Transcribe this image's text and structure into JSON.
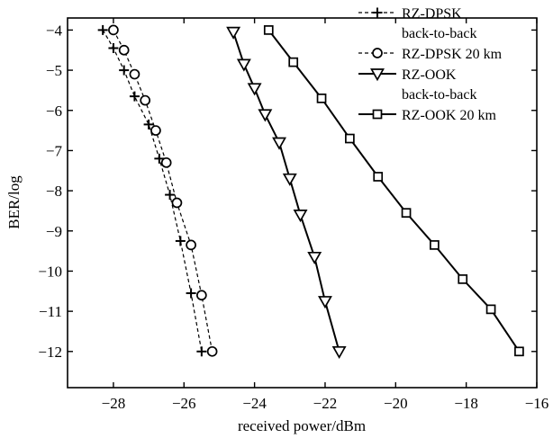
{
  "chart_data": {
    "type": "line",
    "title": "",
    "xlabel": "received power/dBm",
    "ylabel": "BER/log",
    "xlim": [
      -29.3,
      -16
    ],
    "ylim": [
      -12.9,
      -3.7
    ],
    "xticks": [
      -28,
      -26,
      -24,
      -22,
      -20,
      -18,
      -16
    ],
    "yticks": [
      -4,
      -5,
      -6,
      -7,
      -8,
      -9,
      -10,
      -11,
      -12
    ],
    "grid": false,
    "legend_position": "top-right",
    "series": [
      {
        "name_lines": [
          "RZ-DPSK",
          "back-to-back"
        ],
        "marker": "plus",
        "dash": true,
        "x": [
          -28.3,
          -28.0,
          -27.7,
          -27.4,
          -27.0,
          -26.7,
          -26.4,
          -26.1,
          -25.8,
          -25.5
        ],
        "y": [
          -4,
          -4.45,
          -5.0,
          -5.65,
          -6.35,
          -7.2,
          -8.1,
          -9.25,
          -10.55,
          -12
        ]
      },
      {
        "name_lines": [
          "RZ-DPSK 20 km"
        ],
        "marker": "circle",
        "dash": true,
        "x": [
          -28.0,
          -27.7,
          -27.4,
          -27.1,
          -26.8,
          -26.5,
          -26.2,
          -25.8,
          -25.5,
          -25.2
        ],
        "y": [
          -4,
          -4.5,
          -5.1,
          -5.75,
          -6.5,
          -7.3,
          -8.3,
          -9.35,
          -10.6,
          -12
        ]
      },
      {
        "name_lines": [
          "RZ-OOK",
          "back-to-back"
        ],
        "marker": "triangle-down",
        "dash": false,
        "x": [
          -24.6,
          -24.3,
          -24.0,
          -23.7,
          -23.3,
          -23.0,
          -22.7,
          -22.3,
          -22.0,
          -21.6
        ],
        "y": [
          -4.05,
          -4.85,
          -5.45,
          -6.1,
          -6.8,
          -7.7,
          -8.6,
          -9.65,
          -10.75,
          -12
        ]
      },
      {
        "name_lines": [
          "RZ-OOK 20 km"
        ],
        "marker": "square",
        "dash": false,
        "x": [
          -23.6,
          -22.9,
          -22.1,
          -21.3,
          -20.5,
          -19.7,
          -18.9,
          -18.1,
          -17.3,
          -16.5
        ],
        "y": [
          -4,
          -4.8,
          -5.7,
          -6.7,
          -7.65,
          -8.55,
          -9.35,
          -10.2,
          -10.95,
          -12
        ]
      }
    ]
  }
}
